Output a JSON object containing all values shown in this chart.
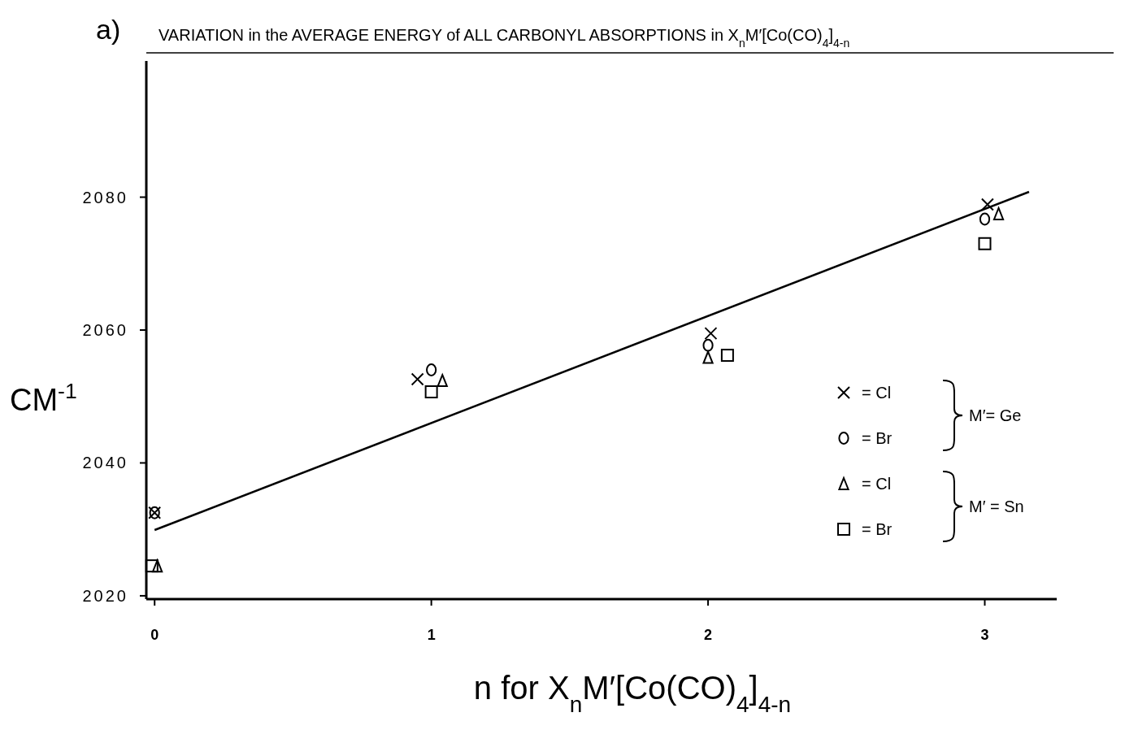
{
  "chart_data": {
    "type": "scatter",
    "title": "VARIATION in the AVERAGE ENERGY of ALL CARBONYL ABSORPTIONS in X$_{n}$M′[Co(CO)$_{4}$]$_{4-n}$",
    "xlabel": "n for X$_{n}$M′[Co(CO)$_{4}$]$_{4-n}$",
    "ylabel": "CM$^{-1}$",
    "annotations": [
      "a)",
      "M′= Ge",
      "M′ = Sn"
    ],
    "xlim": [
      -0.03,
      3.26
    ],
    "ylim": [
      2019.5,
      2100.5
    ],
    "xticks": [
      0,
      1,
      2,
      3
    ],
    "yticks": [
      2020,
      2040,
      2060,
      2080
    ],
    "grid": false,
    "legend": "right",
    "series": [
      {
        "name": "= Cl",
        "marker": "cross",
        "color": "#000000",
        "x": [
          0,
          0.95,
          2.01,
          3.01
        ],
        "values": [
          2032.5,
          2052.6,
          2059.5,
          2078.9
        ]
      },
      {
        "name": "= Br",
        "marker": "circle",
        "color": "#000000",
        "x": [
          0,
          1.0,
          2.0,
          3.0
        ],
        "values": [
          2032.5,
          2054.0,
          2057.7,
          2076.7
        ]
      },
      {
        "name": "= Cl",
        "marker": "triangle",
        "color": "#000000",
        "x": [
          0.01,
          1.04,
          2.0,
          3.05
        ],
        "values": [
          2024.5,
          2052.4,
          2055.9,
          2077.5
        ]
      },
      {
        "name": "= Br",
        "marker": "square",
        "color": "#000000",
        "x": [
          -0.01,
          1.0,
          2.07,
          3.0
        ],
        "values": [
          2024.5,
          2050.7,
          2056.2,
          2073.0
        ]
      },
      {
        "type": "line",
        "marker": "none",
        "line_style": "solid",
        "color": "#000000",
        "x": [
          0,
          3.16
        ],
        "values": [
          2029.9,
          2080.8
        ]
      }
    ]
  }
}
